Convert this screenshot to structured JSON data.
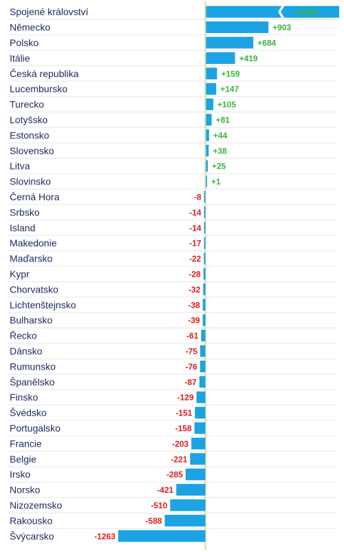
{
  "chart_data": {
    "type": "bar",
    "orientation": "horizontal",
    "categories": [
      "Spojené království",
      "Německo",
      "Polsko",
      "Itálie",
      "Česká republika",
      "Lucembursko",
      "Turecko",
      "Lotyšsko",
      "Estonsko",
      "Slovensko",
      "Litva",
      "Slovinsko",
      "Černá Hora",
      "Srbsko",
      "Island",
      "Makedonie",
      "Maďarsko",
      "Kypr",
      "Chorvatsko",
      "Lichtenštejnsko",
      "Bulharsko",
      "Řecko",
      "Dánsko",
      "Rumunsko",
      "Španělsko",
      "Finsko",
      "Švédsko",
      "Portugalsko",
      "Francie",
      "Belgie",
      "Irsko",
      "Norsko",
      "Nizozemsko",
      "Rakousko",
      "Švýcarsko"
    ],
    "values": [
      4290,
      903,
      684,
      419,
      159,
      147,
      105,
      81,
      44,
      38,
      25,
      1,
      -8,
      -14,
      -14,
      -17,
      -22,
      -28,
      -32,
      -38,
      -39,
      -61,
      -75,
      -76,
      -87,
      -129,
      -151,
      -158,
      -203,
      -221,
      -285,
      -421,
      -510,
      -588,
      -1263
    ],
    "value_labels": [
      "+4290",
      "+903",
      "+684",
      "+419",
      "+159",
      "+147",
      "+105",
      "+81",
      "+44",
      "+38",
      "+25",
      "+1",
      "-8",
      "-14",
      "-14",
      "-17",
      "-22",
      "-28",
      "-32",
      "-38",
      "-39",
      "-61",
      "-75",
      "-76",
      "-87",
      "-129",
      "-151",
      "-158",
      "-203",
      "-221",
      "-285",
      "-421",
      "-510",
      "-588",
      "-1263"
    ],
    "axis_break": {
      "category": "Spojené království",
      "visible_max": 1000
    },
    "grid": false,
    "colors": {
      "bar": "#1ba3e3",
      "positive_text": "#3ab53a",
      "negative_text": "#e01b1b",
      "inside_text": "#ffffff",
      "category_text": "#1c2a5c",
      "zero_line": "#d4d9a5",
      "row_separator": "#e7e7e7"
    }
  }
}
